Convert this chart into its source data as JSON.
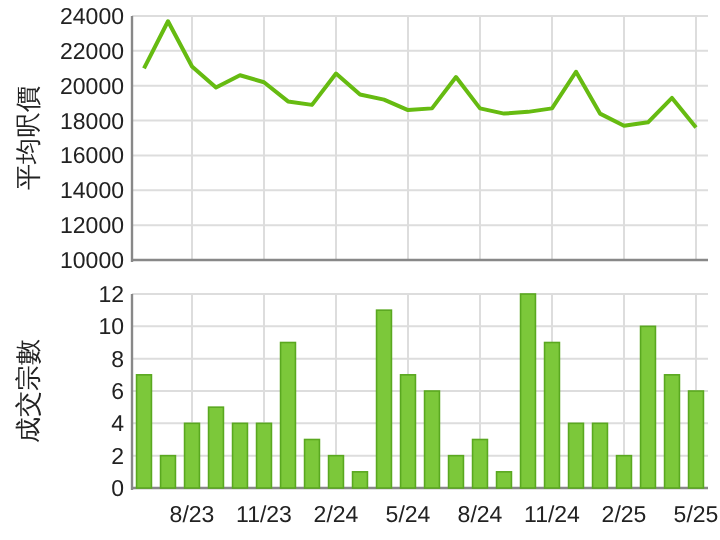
{
  "chart_data": [
    {
      "type": "line",
      "ylabel": "平均呎價",
      "categories": [
        null,
        null,
        null,
        null,
        null,
        null,
        null,
        null,
        null,
        null,
        null,
        null,
        null,
        null,
        null,
        null,
        null,
        null,
        null,
        null,
        null,
        null,
        null,
        null
      ],
      "values": [
        21000,
        23700,
        21100,
        19900,
        20600,
        20200,
        19100,
        18900,
        20700,
        19500,
        19200,
        18600,
        18700,
        20500,
        18700,
        18400,
        18500,
        18700,
        20800,
        18400,
        17700,
        17900,
        19300,
        17600
      ],
      "color": "#66bb11",
      "ylim": [
        10000,
        24000
      ],
      "yticks": [
        10000,
        12000,
        14000,
        16000,
        18000,
        20000,
        22000,
        24000
      ],
      "grid": true,
      "tick_labels": "y"
    },
    {
      "type": "bar",
      "ylabel": "成交宗數",
      "categories": [
        null,
        null,
        "8/23",
        null,
        null,
        "11/23",
        null,
        null,
        "2/24",
        null,
        null,
        "5/24",
        null,
        null,
        "8/24",
        null,
        null,
        "11/24",
        null,
        null,
        "2/25",
        null,
        null,
        "5/25"
      ],
      "values": [
        7,
        2,
        4,
        5,
        4,
        4,
        9,
        3,
        2,
        1,
        11,
        7,
        6,
        2,
        3,
        1,
        12,
        9,
        4,
        4,
        2,
        10,
        7,
        6
      ],
      "color": "#7cc83a",
      "ylim": [
        0,
        12
      ],
      "yticks": [
        0,
        2,
        4,
        6,
        8,
        10,
        12
      ],
      "grid": true
    }
  ]
}
